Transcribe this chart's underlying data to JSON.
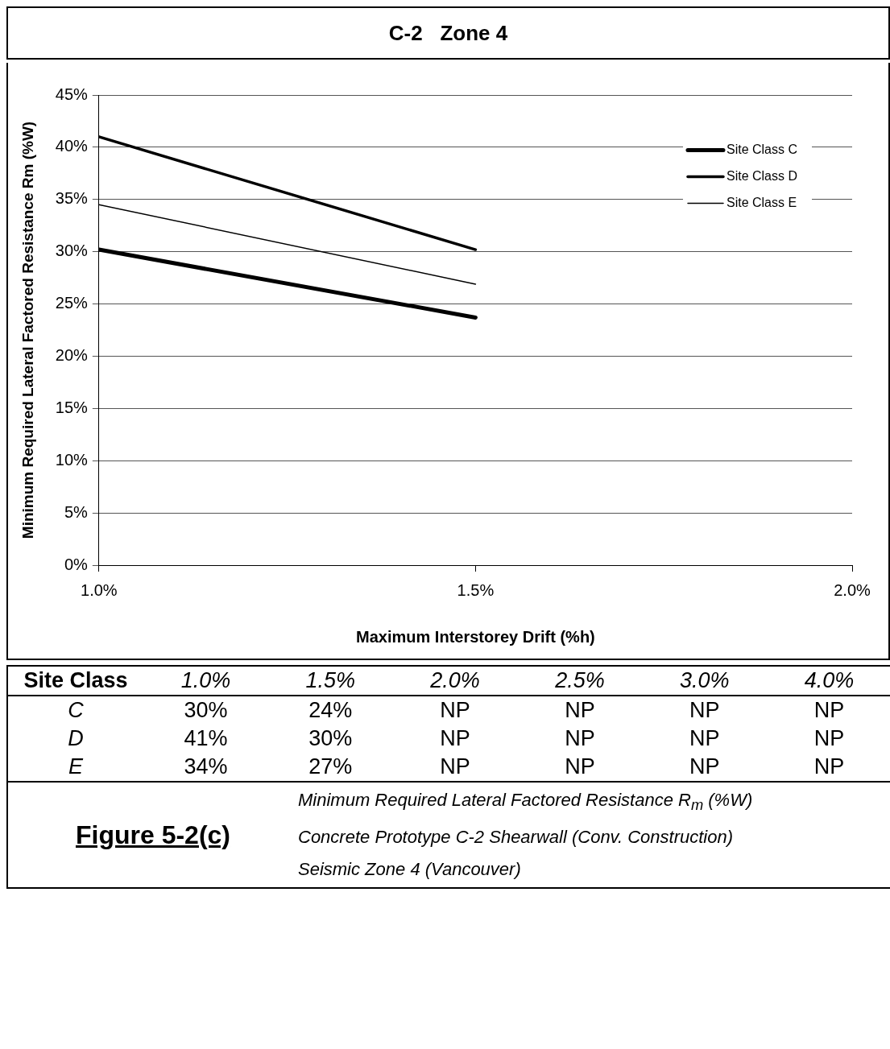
{
  "chart_data": [
    {
      "type": "line",
      "title": "C-2   Zone 4",
      "xlabel": "Maximum Interstorey Drift (%h)",
      "ylabel": "Minimum Required Lateral Factored Resistance Rm (%W)",
      "x": [
        1.0,
        1.5
      ],
      "series": [
        {
          "name": "Site Class C",
          "color": "#000000",
          "values": [
            30.2,
            23.7
          ]
        },
        {
          "name": "Site Class D",
          "color": "#000000",
          "values": [
            41,
            30.2
          ]
        },
        {
          "name": "Site Class E",
          "color": "#000000",
          "values": [
            34.5,
            26.9
          ]
        }
      ],
      "xlim": [
        1.0,
        2.0
      ],
      "xticks": [
        {
          "value": 1.0,
          "label": "1.0%"
        },
        {
          "value": 1.5,
          "label": "1.5%"
        },
        {
          "value": 2.0,
          "label": "2.0%"
        }
      ],
      "ylim": [
        0,
        45
      ],
      "yticks": [
        {
          "value": 0,
          "label": "0%"
        },
        {
          "value": 5,
          "label": "5%"
        },
        {
          "value": 10,
          "label": "10%"
        },
        {
          "value": 15,
          "label": "15%"
        },
        {
          "value": 20,
          "label": "20%"
        },
        {
          "value": 25,
          "label": "25%"
        },
        {
          "value": 30,
          "label": "30%"
        },
        {
          "value": 35,
          "label": "35%"
        },
        {
          "value": 40,
          "label": "40%"
        },
        {
          "value": 45,
          "label": "45%"
        }
      ],
      "grid": "y",
      "legend": "top right",
      "marker": "none",
      "line_style": "solid"
    },
    {
      "type": "heatmap",
      "ylabel": "Site Class",
      "categories": [
        "1.0%",
        "1.5%",
        "2.0%",
        "2.5%",
        "3.0%",
        "4.0%"
      ],
      "y_categories": [
        "C",
        "D",
        "E"
      ],
      "cells": [
        [
          30,
          24,
          null,
          null,
          null,
          null
        ],
        [
          41,
          30,
          null,
          null,
          null,
          null
        ],
        [
          34,
          27,
          null,
          null,
          null,
          null
        ]
      ],
      "cell_labels": [
        [
          "30%",
          "24%",
          "NP",
          "NP",
          "NP",
          "NP"
        ],
        [
          "41%",
          "30%",
          "NP",
          "NP",
          "NP",
          "NP"
        ],
        [
          "34%",
          "27%",
          "NP",
          "NP",
          "NP",
          "NP"
        ]
      ],
      "annotations": [
        "Figure 5-2(c)",
        "Minimum Required Lateral Factored Resistance R$_{m}$ (%W)",
        "Concrete Prototype C-2 Shearwall (Conv. Construction)",
        "Seismic Zone 4 (Vancouver)"
      ]
    }
  ]
}
